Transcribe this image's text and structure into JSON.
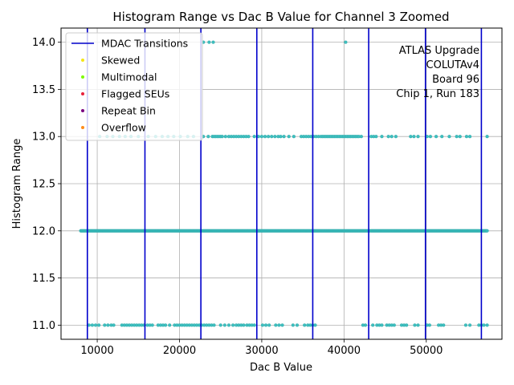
{
  "chart_data": {
    "type": "scatter",
    "title": "Histogram Range vs Dac B Value for Channel 3 Zoomed",
    "xlabel": "Dac B Value",
    "ylabel": "Histogram Range",
    "xlim": [
      5600,
      59200
    ],
    "ylim": [
      10.85,
      14.15
    ],
    "xticks": [
      10000,
      20000,
      30000,
      40000,
      50000
    ],
    "xtick_labels": [
      "10000",
      "20000",
      "30000",
      "40000",
      "50000"
    ],
    "yticks": [
      11.0,
      11.5,
      12.0,
      12.5,
      13.0,
      13.5,
      14.0
    ],
    "ytick_labels": [
      "11.0",
      "11.5",
      "12.0",
      "12.5",
      "13.0",
      "13.5",
      "14.0"
    ],
    "grid": true,
    "legend_position": "top-left",
    "annotation": [
      "ATLAS Upgrade",
      "COLUTAv4",
      "Board 96",
      "Chip 1, Run 183"
    ],
    "mdac_transitions": [
      8800,
      15800,
      22600,
      29400,
      36200,
      43000,
      49900,
      56700
    ],
    "point_color": "#3fbfbf",
    "line_color": "#0000cc",
    "legend": [
      {
        "label": "MDAC Transitions",
        "kind": "line",
        "color": "#0000cc"
      },
      {
        "label": "Skewed",
        "kind": "dot",
        "color": "#f5e616"
      },
      {
        "label": "Multimodal",
        "kind": "dot",
        "color": "#7cfc00"
      },
      {
        "label": "Flagged SEUs",
        "kind": "dot",
        "color": "#e8213a"
      },
      {
        "label": "Repeat Bin",
        "kind": "dot",
        "color": "#7a0080"
      },
      {
        "label": "Overflow",
        "kind": "dot",
        "color": "#ff8c1a"
      }
    ],
    "series": [
      {
        "y": 11,
        "x": [
          9000,
          9400,
          9800,
          10200,
          10900,
          11300,
          11700,
          12000,
          13000,
          13300,
          13600,
          13900,
          14200,
          14500,
          14800,
          15100,
          15400,
          15700,
          16100,
          16400,
          16700,
          17400,
          17700,
          18000,
          18300,
          18800,
          19400,
          19700,
          20000,
          20300,
          20600,
          20900,
          21200,
          21500,
          21800,
          22100,
          22400,
          22700,
          23000,
          23300,
          23600,
          23900,
          24200,
          25000,
          25500,
          26000,
          26500,
          26900,
          27200,
          27500,
          27800,
          28200,
          28500,
          28800,
          29100,
          30100,
          30500,
          30900,
          31700,
          32100,
          32500,
          33800,
          34300,
          35200,
          35600,
          35900,
          36200,
          36500,
          42300,
          42600,
          43500,
          44000,
          44300,
          44600,
          45200,
          45500,
          45800,
          46100,
          47000,
          47300,
          47600,
          48600,
          49000,
          50100,
          50400,
          51500,
          51800,
          52100,
          54800,
          55300,
          56400,
          56700,
          57000,
          57400
        ]
      },
      {
        "y": 12,
        "x_range": [
          8000,
          57400
        ]
      },
      {
        "y": 13,
        "x": [
          10300,
          11200,
          11900,
          12700,
          13400,
          14100,
          15000,
          16200,
          17100,
          17900,
          18600,
          19300,
          20100,
          21000,
          21700,
          22900,
          23500,
          24000,
          24200,
          24400,
          24600,
          24800,
          25000,
          25200,
          25600,
          26000,
          26300,
          26600,
          26900,
          27200,
          27500,
          27800,
          28100,
          28400,
          29100,
          29600,
          30000,
          30400,
          30800,
          31200,
          31600,
          32000,
          32300,
          32700,
          33300,
          33900,
          34800,
          35100,
          35400,
          35700,
          36000,
          36300,
          36600,
          36900,
          37200,
          37400,
          37600,
          37800,
          38000,
          38200,
          38400,
          38600,
          38800,
          39000,
          39200,
          39400,
          39600,
          39800,
          40000,
          40200,
          40400,
          40600,
          40800,
          41000,
          41200,
          41400,
          41600,
          41800,
          42100,
          43300,
          43600,
          43900,
          44600,
          45400,
          45800,
          46300,
          48100,
          48500,
          49000,
          50100,
          50500,
          51200,
          51900,
          52800,
          53700,
          54100,
          54900,
          55300,
          57400
        ]
      },
      {
        "y": 14,
        "x": [
          22900,
          23600,
          24100,
          40200
        ]
      }
    ]
  }
}
